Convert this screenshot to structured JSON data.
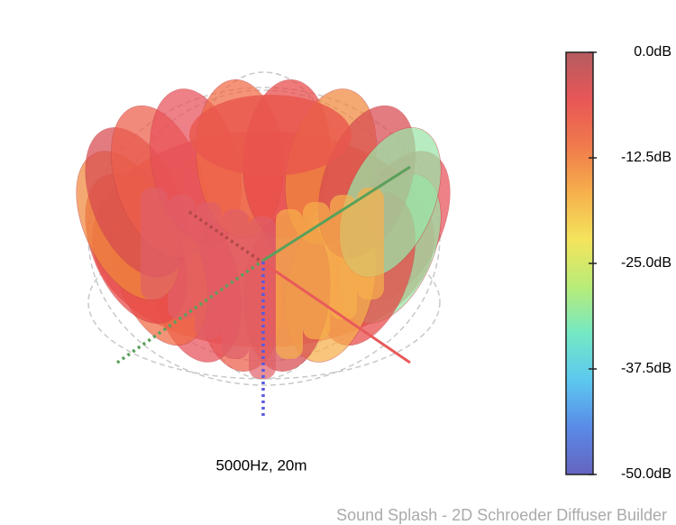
{
  "chart_data": {
    "type": "polar3d",
    "caption": "5000Hz, 20m",
    "footer": "Sound Splash - 2D Schroeder Diffuser Builder",
    "clim": [
      -50,
      0
    ],
    "cticks": [
      {
        "value": 0,
        "label": "0.0dB"
      },
      {
        "value": -12.5,
        "label": "-12.5dB"
      },
      {
        "value": -25,
        "label": "-25.0dB"
      },
      {
        "value": -37.5,
        "label": "-37.5dB"
      },
      {
        "value": -50,
        "label": "-50.0dB"
      }
    ],
    "colormap": [
      "#6464c0",
      "#5a8ae6",
      "#5cc8f0",
      "#74e8c4",
      "#b8ec78",
      "#f4e45c",
      "#f6b04c",
      "#f07a4c",
      "#e85656",
      "#b45c60"
    ]
  }
}
